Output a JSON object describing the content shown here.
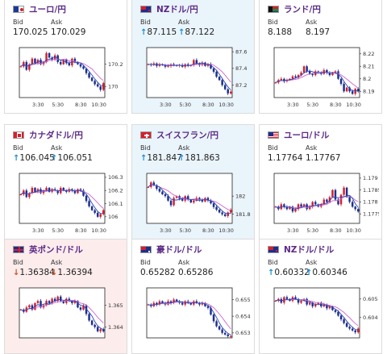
{
  "colors": {
    "title": "#5b2a86",
    "arrow_up": "#1a8fd9",
    "arrow_down": "#d05020",
    "candle_up": "#d81e2c",
    "candle_down": "#1b2f8e",
    "ma1": "#cc66cc",
    "ma2": "#2e46b4"
  },
  "labels": {
    "bid": "Bid",
    "ask": "Ask"
  },
  "cards": [
    {
      "pair": "ユーロ/円",
      "flag": "eu-japan-flag",
      "tint": "neutral",
      "bid_arrow": "",
      "bid": "170.025",
      "ask_arrow": "",
      "ask": "170.029",
      "chart_data": {
        "type": "candlestick",
        "xticks": [
          "3:30",
          "5:30",
          "8:30",
          "10:30"
        ],
        "yticks": [
          "170.2",
          "170"
        ],
        "ylim": [
          169.9,
          170.35
        ],
        "close": [
          170.18,
          170.22,
          170.15,
          170.2,
          170.25,
          170.21,
          170.24,
          170.2,
          170.22,
          170.3,
          170.26,
          170.24,
          170.28,
          170.22,
          170.2,
          170.24,
          170.21,
          170.19,
          170.25,
          170.22,
          170.2,
          170.18,
          170.16,
          170.12,
          170.08,
          170.05,
          170.02,
          170.0,
          169.97,
          170.03
        ]
      }
    },
    {
      "pair": "NZドル/円",
      "flag": "nz-flag",
      "tint": "up",
      "bid_arrow": "↑",
      "bid": "87.115",
      "ask_arrow": "↑",
      "ask": "87.122",
      "chart_data": {
        "type": "candlestick",
        "xticks": [
          "3:30",
          "5:30",
          "8:30",
          "10:30"
        ],
        "yticks": [
          "87.6",
          "87.4",
          "87.2"
        ],
        "ylim": [
          87.05,
          87.65
        ],
        "close": [
          87.45,
          87.44,
          87.46,
          87.43,
          87.45,
          87.44,
          87.42,
          87.43,
          87.45,
          87.44,
          87.43,
          87.44,
          87.42,
          87.45,
          87.43,
          87.44,
          87.5,
          87.46,
          87.44,
          87.47,
          87.43,
          87.45,
          87.4,
          87.36,
          87.3,
          87.26,
          87.2,
          87.15,
          87.1,
          87.12
        ]
      }
    },
    {
      "pair": "ランド/円",
      "flag": "south-africa-flag",
      "tint": "neutral",
      "bid_arrow": "",
      "bid": "8.188",
      "ask_arrow": "",
      "ask": "8.197",
      "chart_data": {
        "type": "candlestick",
        "xticks": [
          "3:30",
          "5:30",
          "8:30",
          "10:30"
        ],
        "yticks": [
          "8.22",
          "8.21",
          "8.2",
          "8.19"
        ],
        "ylim": [
          8.185,
          8.225
        ],
        "close": [
          8.197,
          8.199,
          8.2,
          8.198,
          8.199,
          8.2,
          8.202,
          8.201,
          8.203,
          8.205,
          8.21,
          8.206,
          8.204,
          8.203,
          8.206,
          8.205,
          8.204,
          8.207,
          8.205,
          8.203,
          8.205,
          8.206,
          8.2,
          8.196,
          8.19,
          8.193,
          8.19,
          8.188,
          8.192,
          8.19
        ]
      }
    },
    {
      "pair": "カナダドル/円",
      "flag": "canada-flag",
      "tint": "neutral",
      "bid_arrow": "↑",
      "bid": "106.045",
      "ask_arrow": "↑",
      "ask": "106.051",
      "chart_data": {
        "type": "candlestick",
        "xticks": [
          "3:30",
          "5:30",
          "8:30",
          "10:30"
        ],
        "yticks": [
          "106.3",
          "106.2",
          "106.1",
          "106"
        ],
        "ylim": [
          105.95,
          106.33
        ],
        "close": [
          106.17,
          106.2,
          106.15,
          106.18,
          106.22,
          106.19,
          106.21,
          106.18,
          106.2,
          106.22,
          106.19,
          106.21,
          106.2,
          106.18,
          106.22,
          106.2,
          106.19,
          106.21,
          106.2,
          106.18,
          106.21,
          106.2,
          106.16,
          106.12,
          106.08,
          106.05,
          106.03,
          106.0,
          106.02,
          106.05
        ]
      }
    },
    {
      "pair": "スイスフラン/円",
      "flag": "swiss-flag",
      "tint": "up",
      "bid_arrow": "↑",
      "bid": "181.847",
      "ask_arrow": "↑",
      "ask": "181.863",
      "chart_data": {
        "type": "candlestick",
        "xticks": [
          "3:30",
          "5:30",
          "8:30",
          "10:30"
        ],
        "yticks": [
          "182",
          "181.8"
        ],
        "ylim": [
          181.7,
          182.25
        ],
        "close": [
          182.1,
          182.15,
          182.12,
          182.08,
          182.05,
          182.02,
          182.0,
          181.95,
          181.9,
          181.98,
          182.0,
          181.97,
          181.95,
          182.0,
          181.96,
          181.93,
          181.95,
          181.98,
          181.96,
          181.94,
          181.98,
          181.95,
          181.92,
          181.88,
          181.85,
          181.82,
          181.8,
          181.78,
          181.82,
          181.85
        ]
      }
    },
    {
      "pair": "ユーロ/ドル",
      "flag": "us-flag",
      "tint": "neutral",
      "bid_arrow": "",
      "bid": "1.17764",
      "ask_arrow": "",
      "ask": "1.17767",
      "chart_data": {
        "type": "candlestick",
        "xticks": [
          "3:30",
          "5:30",
          "8:30",
          "10:30"
        ],
        "yticks": [
          "1.179",
          "1.1785",
          "1.178",
          "1.1775"
        ],
        "ylim": [
          1.1771,
          1.1792
        ],
        "close": [
          1.1778,
          1.1777,
          1.1779,
          1.1778,
          1.1777,
          1.1778,
          1.1776,
          1.1777,
          1.1779,
          1.1778,
          1.1779,
          1.1777,
          1.1778,
          1.178,
          1.1779,
          1.1778,
          1.1779,
          1.1781,
          1.178,
          1.1782,
          1.1785,
          1.1781,
          1.1779,
          1.1783,
          1.1786,
          1.1782,
          1.178,
          1.1778,
          1.1777,
          1.1776
        ]
      }
    },
    {
      "pair": "英ポンド/ドル",
      "flag": "uk-flag",
      "tint": "down",
      "bid_arrow": "↓",
      "bid": "1.36384",
      "ask_arrow": "↓",
      "ask": "1.36394",
      "chart_data": {
        "type": "candlestick",
        "xticks": [],
        "yticks": [
          "1.365",
          "1.364"
        ],
        "ylim": [
          1.3635,
          1.3658
        ],
        "close": [
          1.3648,
          1.3647,
          1.3649,
          1.365,
          1.3648,
          1.3651,
          1.3652,
          1.3649,
          1.365,
          1.3652,
          1.3651,
          1.3653,
          1.3652,
          1.3654,
          1.3652,
          1.3651,
          1.3653,
          1.3652,
          1.3651,
          1.3652,
          1.3649,
          1.3648,
          1.365,
          1.3646,
          1.3643,
          1.3641,
          1.364,
          1.3638,
          1.3639,
          1.3638
        ]
      }
    },
    {
      "pair": "豪ドル/ドル",
      "flag": "australia-flag",
      "tint": "neutral",
      "bid_arrow": "",
      "bid": "0.65282",
      "ask_arrow": "",
      "ask": "0.65286",
      "chart_data": {
        "type": "candlestick",
        "xticks": [],
        "yticks": [
          "0.655",
          "0.654",
          "0.653"
        ],
        "ylim": [
          0.6527,
          0.6557
        ],
        "close": [
          0.6547,
          0.6546,
          0.6548,
          0.6547,
          0.6549,
          0.6548,
          0.6547,
          0.6549,
          0.6548,
          0.655,
          0.6549,
          0.6548,
          0.6547,
          0.6549,
          0.6548,
          0.6547,
          0.6549,
          0.6548,
          0.6547,
          0.6548,
          0.6546,
          0.6545,
          0.6541,
          0.6537,
          0.6534,
          0.6532,
          0.653,
          0.6529,
          0.6528,
          0.6528
        ]
      }
    },
    {
      "pair": "NZドル/ドル",
      "flag": "nz-flag",
      "tint": "neutral",
      "bid_arrow": "↑",
      "bid": "0.60332",
      "ask_arrow": "↑",
      "ask": "0.60346",
      "chart_data": {
        "type": "candlestick",
        "xticks": [],
        "yticks": [
          "0.605",
          "0.604"
        ],
        "ylim": [
          0.6029,
          0.6056
        ],
        "close": [
          0.6049,
          0.605,
          0.6048,
          0.6051,
          0.605,
          0.6049,
          0.6051,
          0.605,
          0.6048,
          0.6049,
          0.605,
          0.6047,
          0.6048,
          0.6046,
          0.6047,
          0.6048,
          0.6046,
          0.6047,
          0.6045,
          0.6046,
          0.6044,
          0.6043,
          0.6041,
          0.6039,
          0.6037,
          0.6035,
          0.6034,
          0.6033,
          0.6032,
          0.6034
        ]
      }
    }
  ]
}
